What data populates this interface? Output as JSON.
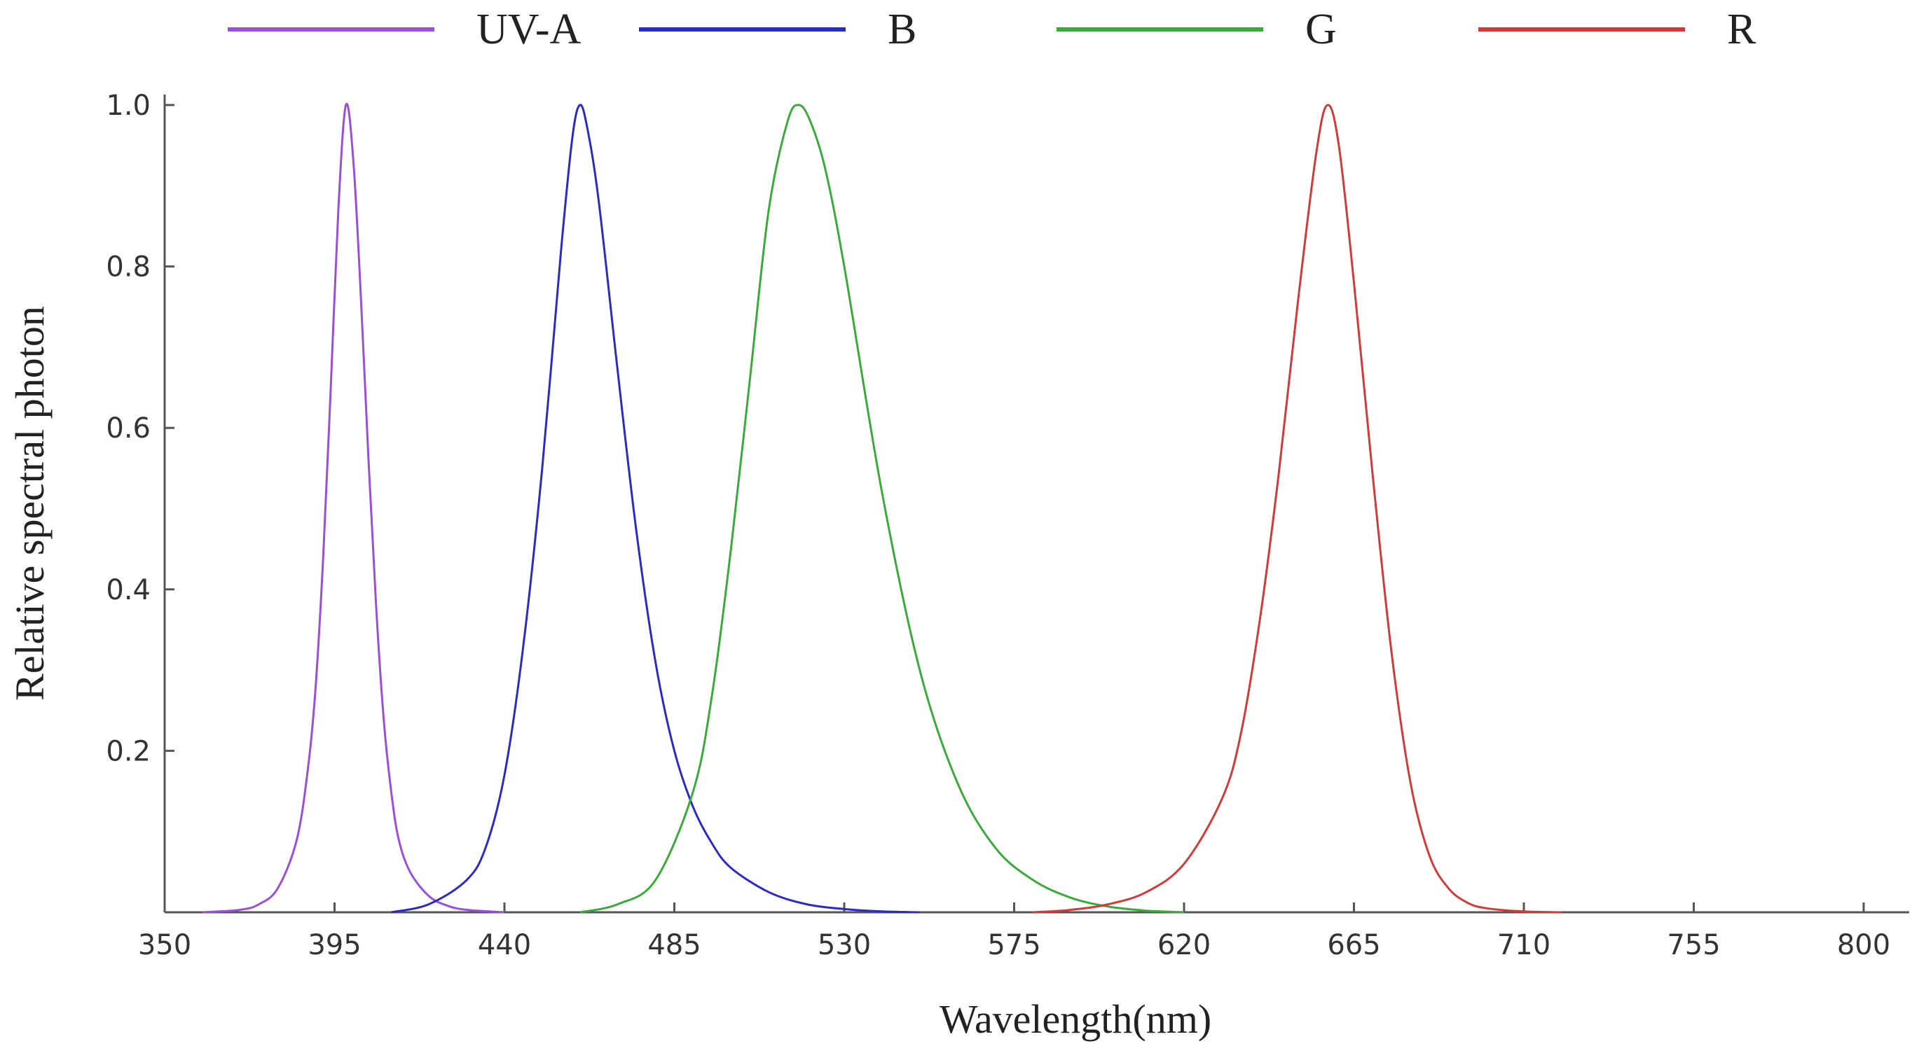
{
  "chart_data": {
    "type": "line",
    "title": "",
    "xlabel": "Wavelength(nm)",
    "ylabel": "Relative spectral photon",
    "xlim": [
      350,
      810
    ],
    "ylim": [
      0,
      1.0
    ],
    "xticks": [
      350,
      395,
      440,
      485,
      530,
      575,
      620,
      665,
      710,
      755,
      800
    ],
    "yticks": [
      0.2,
      0.4,
      0.6,
      0.8,
      1.0
    ],
    "ytick_labels": [
      "0.2",
      "0.4",
      "0.6",
      "0.8",
      "1.0"
    ],
    "legend_position": "top",
    "series": [
      {
        "name": "UV-A",
        "color": "#9b4fd9",
        "peak_nm": 398,
        "peak_value": 1.0,
        "x": [
          360,
          370,
          375,
          380,
          385,
          388,
          390,
          392,
          394,
          396,
          398,
          400,
          402,
          404,
          406,
          408,
          410,
          412,
          415,
          420,
          425,
          430,
          440
        ],
        "y": [
          0.0,
          0.003,
          0.01,
          0.03,
          0.09,
          0.18,
          0.28,
          0.44,
          0.65,
          0.87,
          1.0,
          0.93,
          0.76,
          0.56,
          0.38,
          0.24,
          0.15,
          0.09,
          0.05,
          0.02,
          0.008,
          0.003,
          0.0
        ]
      },
      {
        "name": "B",
        "color": "#2b2bc4",
        "peak_nm": 460,
        "peak_value": 1.0,
        "x": [
          410,
          420,
          430,
          435,
          440,
          445,
          450,
          455,
          458,
          460,
          462,
          465,
          470,
          475,
          480,
          485,
          490,
          495,
          500,
          510,
          520,
          530,
          540,
          550
        ],
        "y": [
          0.0,
          0.01,
          0.04,
          0.08,
          0.17,
          0.33,
          0.55,
          0.82,
          0.96,
          1.0,
          0.97,
          0.88,
          0.67,
          0.47,
          0.31,
          0.2,
          0.13,
          0.085,
          0.055,
          0.025,
          0.01,
          0.004,
          0.001,
          0.0
        ]
      },
      {
        "name": "G",
        "color": "#3aaa3a",
        "peak_nm": 518,
        "peak_value": 1.0,
        "x": [
          460,
          470,
          480,
          490,
          495,
          500,
          505,
          510,
          515,
          518,
          521,
          525,
          530,
          540,
          550,
          560,
          570,
          580,
          590,
          600,
          610,
          620
        ],
        "y": [
          0.0,
          0.01,
          0.04,
          0.15,
          0.27,
          0.45,
          0.66,
          0.87,
          0.98,
          1.0,
          0.98,
          0.92,
          0.8,
          0.52,
          0.3,
          0.16,
          0.08,
          0.04,
          0.018,
          0.007,
          0.002,
          0.0
        ]
      },
      {
        "name": "R",
        "color": "#d23a3a",
        "peak_nm": 658,
        "peak_value": 1.0,
        "x": [
          580,
          590,
          600,
          610,
          620,
          630,
          635,
          640,
          645,
          650,
          655,
          658,
          661,
          665,
          670,
          675,
          680,
          685,
          690,
          695,
          700,
          710,
          720
        ],
        "y": [
          0.0,
          0.003,
          0.01,
          0.025,
          0.06,
          0.14,
          0.22,
          0.36,
          0.54,
          0.75,
          0.94,
          1.0,
          0.95,
          0.78,
          0.54,
          0.32,
          0.16,
          0.07,
          0.03,
          0.012,
          0.005,
          0.001,
          0.0
        ]
      }
    ]
  }
}
